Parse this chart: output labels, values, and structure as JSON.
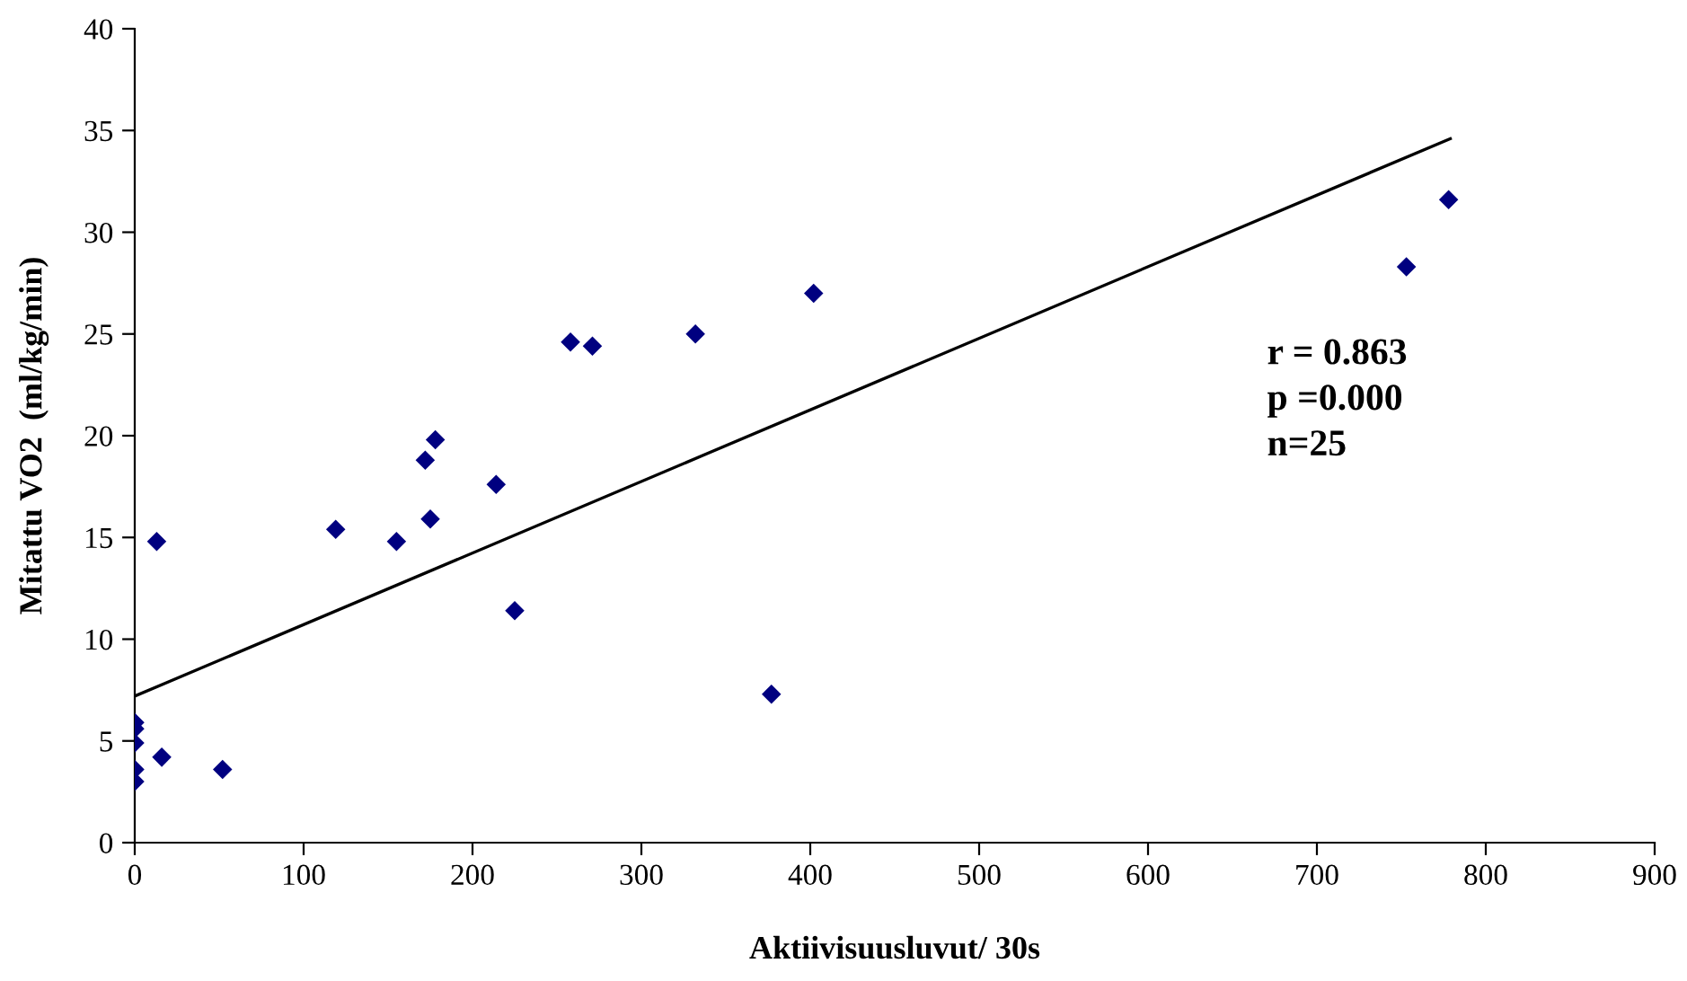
{
  "chart_data": {
    "type": "scatter",
    "xlabel": "Aktiivisuusluvut/ 30s",
    "ylabel": "Mitattu VO2  (ml/kg/min)",
    "xlim": [
      0,
      900
    ],
    "xticks": [
      0,
      100,
      200,
      300,
      400,
      500,
      600,
      700,
      800,
      900
    ],
    "ylim": [
      0,
      40
    ],
    "yticks": [
      0,
      5,
      10,
      15,
      20,
      25,
      30,
      35,
      40
    ],
    "grid": false,
    "legend": false,
    "series": [
      {
        "color": "#000080",
        "marker": "diamond",
        "x": [
          0,
          0,
          0,
          0,
          0,
          13,
          16,
          52,
          119,
          155,
          172,
          175,
          178,
          214,
          225,
          258,
          271,
          332,
          377,
          402,
          753,
          778
        ],
        "values": [
          5.9,
          5.6,
          4.9,
          3.6,
          3.0,
          14.8,
          4.2,
          3.6,
          15.4,
          14.8,
          18.8,
          15.9,
          19.8,
          17.6,
          11.4,
          24.6,
          24.4,
          25.0,
          7.3,
          27.0,
          28.3,
          31.6
        ]
      },
      {
        "type": "line",
        "color": "#000000",
        "marker": "none",
        "line_style": "solid",
        "x": [
          0,
          779
        ],
        "values": [
          7.2,
          34.6
        ]
      }
    ],
    "annotations": [
      {
        "text": "r = 0.863\np =0.000\nn=25"
      }
    ]
  }
}
